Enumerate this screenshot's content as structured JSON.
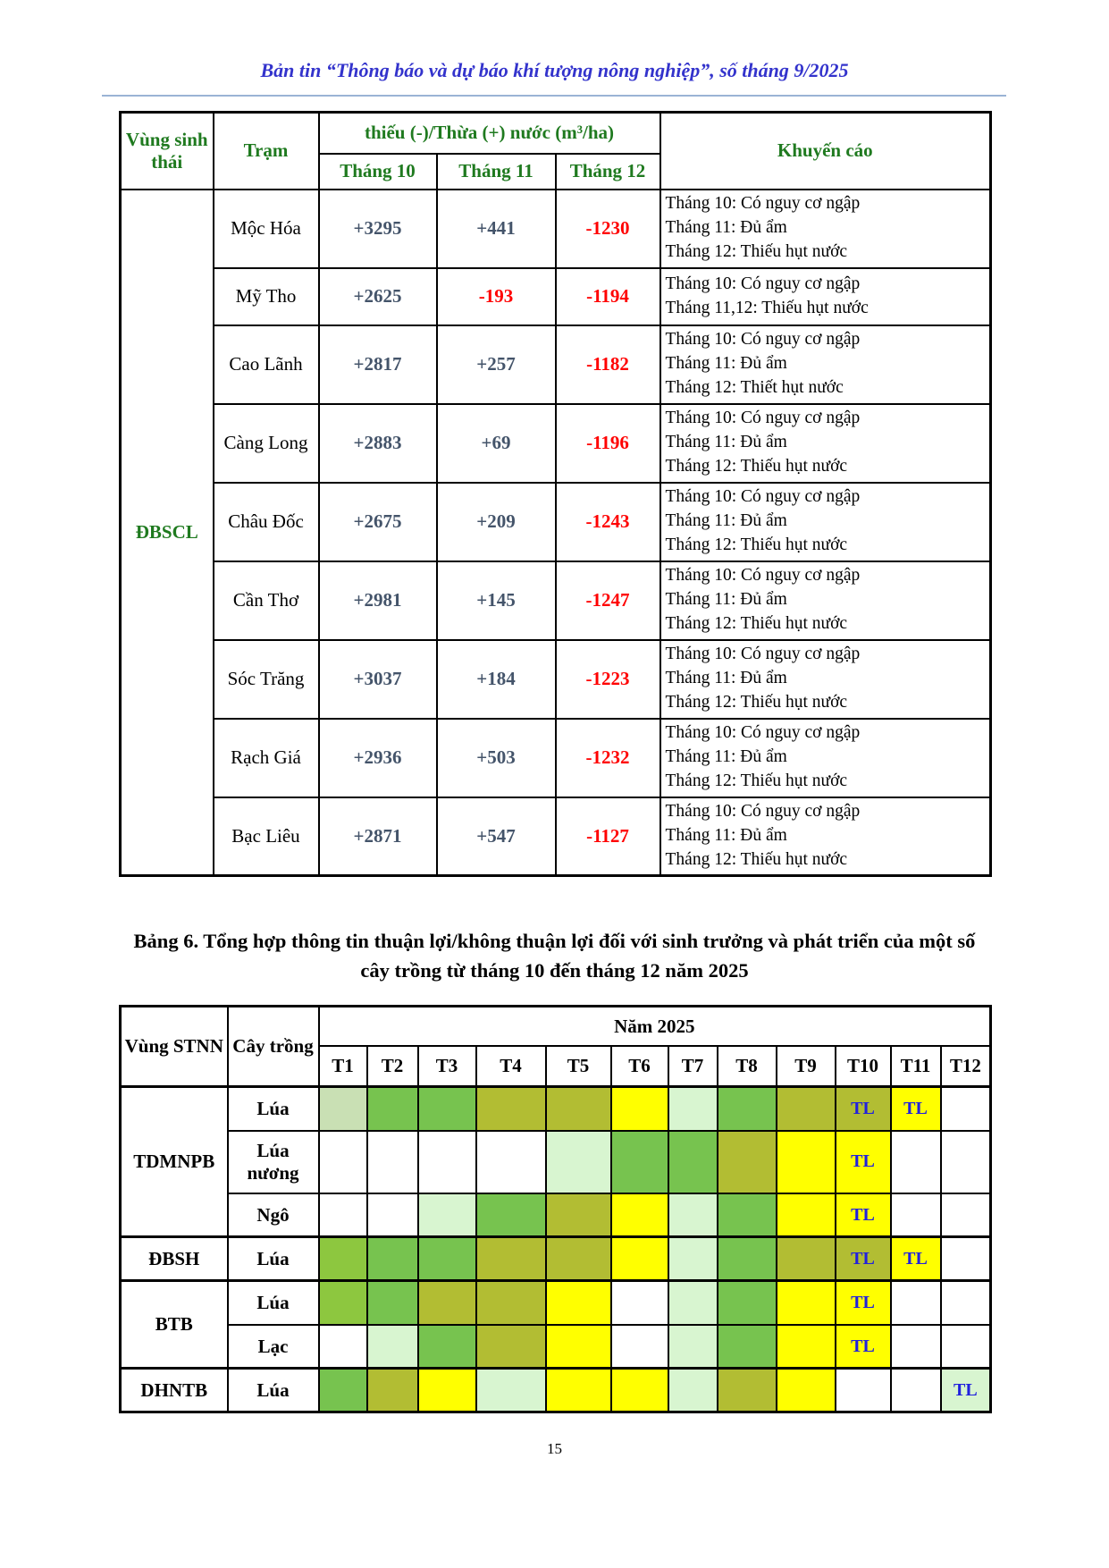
{
  "page": {
    "header_title": "Bản tin “Thông báo và dự báo khí tượng nông nghiệp”, số tháng 9/2025",
    "page_number": "15"
  },
  "colors": {
    "header_green": "#1f7a1f",
    "positive_value": "#44546A",
    "negative_value": "#ff0000",
    "tl_blue": "#2121dd",
    "header_rule": "#9ab3d5",
    "palette": {
      "white": "#ffffff",
      "pale": "#c9e0b4",
      "mint": "#d8f5d0",
      "green": "#77c34f",
      "green2": "#8dc73f",
      "olive": "#b2bd33",
      "yellow": "#ffff00"
    }
  },
  "table1": {
    "headers": {
      "region": "Vùng sinh thái",
      "station": "Trạm",
      "water": "thiếu (-)/Thừa (+) nước (m³/ha)",
      "months": [
        "Tháng 10",
        "Tháng 11",
        "Tháng 12"
      ],
      "advisory": "Khuyến cáo"
    },
    "region_label": "ĐBSCL",
    "rows": [
      {
        "station": "Mộc Hóa",
        "t10": "+3295",
        "t11": "+441",
        "t12": "-1230",
        "advisory": [
          "Tháng 10: Có nguy cơ ngập",
          "Tháng 11: Đủ ẩm",
          "Tháng 12: Thiếu hụt nước"
        ]
      },
      {
        "station": "Mỹ Tho",
        "t10": "+2625",
        "t11": "-193",
        "t12": "-1194",
        "advisory": [
          "Tháng 10: Có nguy cơ ngập",
          "Tháng 11,12: Thiếu hụt nước"
        ]
      },
      {
        "station": "Cao Lãnh",
        "t10": "+2817",
        "t11": "+257",
        "t12": "-1182",
        "advisory": [
          "Tháng 10: Có nguy cơ ngập",
          "Tháng 11: Đủ ẩm",
          "Tháng 12: Thiết hụt nước"
        ]
      },
      {
        "station": "Càng Long",
        "t10": "+2883",
        "t11": "+69",
        "t12": "-1196",
        "advisory": [
          "Tháng 10: Có nguy cơ ngập",
          "Tháng 11: Đủ ẩm",
          "Tháng 12: Thiếu hụt nước"
        ]
      },
      {
        "station": "Châu Đốc",
        "t10": "+2675",
        "t11": "+209",
        "t12": "-1243",
        "advisory": [
          "Tháng 10: Có nguy cơ ngập",
          "Tháng 11: Đủ ẩm",
          "Tháng 12: Thiếu hụt nước"
        ]
      },
      {
        "station": "Cần Thơ",
        "t10": "+2981",
        "t11": "+145",
        "t12": "-1247",
        "advisory": [
          "Tháng 10: Có nguy cơ ngập",
          "Tháng 11: Đủ ẩm",
          "Tháng 12: Thiếu hụt nước"
        ]
      },
      {
        "station": "Sóc Trăng",
        "t10": "+3037",
        "t11": "+184",
        "t12": "-1223",
        "advisory": [
          "Tháng 10: Có nguy cơ ngập",
          "Tháng 11: Đủ ẩm",
          "Tháng 12: Thiếu hụt nước"
        ]
      },
      {
        "station": "Rạch Giá",
        "t10": "+2936",
        "t11": "+503",
        "t12": "-1232",
        "advisory": [
          "Tháng 10: Có nguy cơ ngập",
          "Tháng 11: Đủ ẩm",
          "Tháng 12: Thiếu hụt nước"
        ]
      },
      {
        "station": "Bạc Liêu",
        "t10": "+2871",
        "t11": "+547",
        "t12": "-1127",
        "advisory": [
          "Tháng 10: Có nguy cơ ngập",
          "Tháng 11: Đủ ẩm",
          "Tháng 12: Thiếu hụt nước"
        ]
      }
    ]
  },
  "table2": {
    "title": "Bảng 6. Tổng hợp thông tin thuận lợi/không thuận lợi đối với sinh trưởng và phát triển của một số cây trồng từ tháng 10 đến tháng 12 năm 2025",
    "headers": {
      "region": "Vùng STNN",
      "crop": "Cây trồng",
      "year": "Năm 2025",
      "months": [
        "T1",
        "T2",
        "T3",
        "T4",
        "T5",
        "T6",
        "T7",
        "T8",
        "T9",
        "T10",
        "T11",
        "T12"
      ]
    },
    "rows": [
      {
        "region": "TDMNPB",
        "region_span": 3,
        "crop": "Lúa",
        "cells": [
          {
            "c": "pale"
          },
          {
            "c": "green"
          },
          {
            "c": "green"
          },
          {
            "c": "olive"
          },
          {
            "c": "olive"
          },
          {
            "c": "yellow"
          },
          {
            "c": "mint"
          },
          {
            "c": "green"
          },
          {
            "c": "olive"
          },
          {
            "c": "olive",
            "t": "TL"
          },
          {
            "c": "yellow",
            "t": "TL"
          },
          {
            "c": "white"
          }
        ]
      },
      {
        "crop": "Lúa nương",
        "cells": [
          {
            "c": "white"
          },
          {
            "c": "white"
          },
          {
            "c": "white"
          },
          {
            "c": "white"
          },
          {
            "c": "mint"
          },
          {
            "c": "green"
          },
          {
            "c": "green"
          },
          {
            "c": "olive"
          },
          {
            "c": "yellow"
          },
          {
            "c": "yellow",
            "t": "TL"
          },
          {
            "c": "white"
          },
          {
            "c": "white"
          }
        ]
      },
      {
        "crop": "Ngô",
        "cells": [
          {
            "c": "white"
          },
          {
            "c": "white"
          },
          {
            "c": "mint"
          },
          {
            "c": "green"
          },
          {
            "c": "olive"
          },
          {
            "c": "yellow"
          },
          {
            "c": "mint"
          },
          {
            "c": "green"
          },
          {
            "c": "yellow"
          },
          {
            "c": "yellow",
            "t": "TL"
          },
          {
            "c": "white"
          },
          {
            "c": "white"
          }
        ]
      },
      {
        "region": "ĐBSH",
        "region_span": 1,
        "crop": "Lúa",
        "cells": [
          {
            "c": "green2"
          },
          {
            "c": "green"
          },
          {
            "c": "green"
          },
          {
            "c": "olive"
          },
          {
            "c": "olive"
          },
          {
            "c": "yellow"
          },
          {
            "c": "mint"
          },
          {
            "c": "green"
          },
          {
            "c": "olive"
          },
          {
            "c": "olive",
            "t": "TL"
          },
          {
            "c": "yellow",
            "t": "TL"
          },
          {
            "c": "white"
          }
        ]
      },
      {
        "region": "BTB",
        "region_span": 2,
        "crop": "Lúa",
        "cells": [
          {
            "c": "green2"
          },
          {
            "c": "green"
          },
          {
            "c": "olive"
          },
          {
            "c": "olive"
          },
          {
            "c": "yellow"
          },
          {
            "c": "white"
          },
          {
            "c": "mint"
          },
          {
            "c": "green"
          },
          {
            "c": "yellow"
          },
          {
            "c": "yellow",
            "t": "TL"
          },
          {
            "c": "white"
          },
          {
            "c": "white"
          }
        ]
      },
      {
        "crop": "Lạc",
        "cells": [
          {
            "c": "white"
          },
          {
            "c": "mint"
          },
          {
            "c": "green"
          },
          {
            "c": "olive"
          },
          {
            "c": "yellow"
          },
          {
            "c": "white"
          },
          {
            "c": "mint"
          },
          {
            "c": "green"
          },
          {
            "c": "yellow"
          },
          {
            "c": "yellow",
            "t": "TL"
          },
          {
            "c": "white"
          },
          {
            "c": "white"
          }
        ]
      },
      {
        "region": "DHNTB",
        "region_span": 1,
        "crop": "Lúa",
        "cells": [
          {
            "c": "green"
          },
          {
            "c": "olive"
          },
          {
            "c": "yellow"
          },
          {
            "c": "mint"
          },
          {
            "c": "yellow"
          },
          {
            "c": "yellow"
          },
          {
            "c": "mint"
          },
          {
            "c": "olive"
          },
          {
            "c": "yellow"
          },
          {
            "c": "white"
          },
          {
            "c": "white"
          },
          {
            "c": "mint",
            "t": "TL"
          }
        ]
      }
    ]
  }
}
